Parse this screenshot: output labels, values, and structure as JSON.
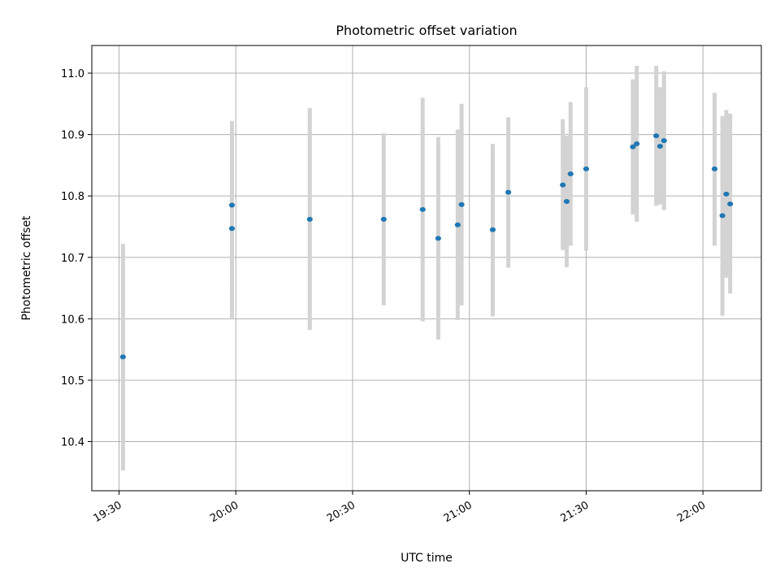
{
  "chart_data": {
    "type": "scatter",
    "title": "Photometric offset variation",
    "xlabel": "UTC time",
    "ylabel": "Photometric offset",
    "x_is_time": true,
    "xlim": [
      "19:23",
      "22:15"
    ],
    "ylim": [
      10.32,
      11.045
    ],
    "x_ticks": [
      "19:30",
      "20:00",
      "20:30",
      "21:00",
      "21:30",
      "22:00"
    ],
    "y_ticks": [
      "10.4",
      "10.5",
      "10.6",
      "10.7",
      "10.8",
      "10.9",
      "11.0"
    ],
    "grid": true,
    "colors": {
      "points": "#1f77b4",
      "errorbars": "#d3d3d3",
      "grid": "#b0b0b0"
    },
    "points": [
      {
        "x": "19:31",
        "y": 10.538,
        "ylow": 10.353,
        "yhigh": 10.722
      },
      {
        "x": "19:59",
        "y": 10.747,
        "ylow": 10.601,
        "yhigh": 10.894
      },
      {
        "x": "19:59",
        "y": 10.785,
        "ylow": 10.648,
        "yhigh": 10.922
      },
      {
        "x": "20:19",
        "y": 10.762,
        "ylow": 10.582,
        "yhigh": 10.943
      },
      {
        "x": "20:38",
        "y": 10.762,
        "ylow": 10.622,
        "yhigh": 10.902
      },
      {
        "x": "20:48",
        "y": 10.778,
        "ylow": 10.596,
        "yhigh": 10.96
      },
      {
        "x": "20:52",
        "y": 10.731,
        "ylow": 10.566,
        "yhigh": 10.896
      },
      {
        "x": "20:57",
        "y": 10.753,
        "ylow": 10.598,
        "yhigh": 10.908
      },
      {
        "x": "20:58",
        "y": 10.786,
        "ylow": 10.622,
        "yhigh": 10.95
      },
      {
        "x": "21:06",
        "y": 10.745,
        "ylow": 10.604,
        "yhigh": 10.885
      },
      {
        "x": "21:10",
        "y": 10.806,
        "ylow": 10.683,
        "yhigh": 10.928
      },
      {
        "x": "21:24",
        "y": 10.818,
        "ylow": 10.712,
        "yhigh": 10.925
      },
      {
        "x": "21:25",
        "y": 10.791,
        "ylow": 10.684,
        "yhigh": 10.898
      },
      {
        "x": "21:26",
        "y": 10.836,
        "ylow": 10.719,
        "yhigh": 10.953
      },
      {
        "x": "21:30",
        "y": 10.844,
        "ylow": 10.711,
        "yhigh": 10.977
      },
      {
        "x": "21:42",
        "y": 10.88,
        "ylow": 10.77,
        "yhigh": 10.99
      },
      {
        "x": "21:43",
        "y": 10.885,
        "ylow": 10.758,
        "yhigh": 11.012
      },
      {
        "x": "21:48",
        "y": 10.898,
        "ylow": 10.784,
        "yhigh": 11.012
      },
      {
        "x": "21:49",
        "y": 10.881,
        "ylow": 10.786,
        "yhigh": 10.977
      },
      {
        "x": "21:50",
        "y": 10.89,
        "ylow": 10.777,
        "yhigh": 11.003
      },
      {
        "x": "22:03",
        "y": 10.844,
        "ylow": 10.719,
        "yhigh": 10.968
      },
      {
        "x": "22:05",
        "y": 10.768,
        "ylow": 10.605,
        "yhigh": 10.93
      },
      {
        "x": "22:06",
        "y": 10.803,
        "ylow": 10.667,
        "yhigh": 10.94
      },
      {
        "x": "22:07",
        "y": 10.787,
        "ylow": 10.641,
        "yhigh": 10.934
      }
    ]
  }
}
